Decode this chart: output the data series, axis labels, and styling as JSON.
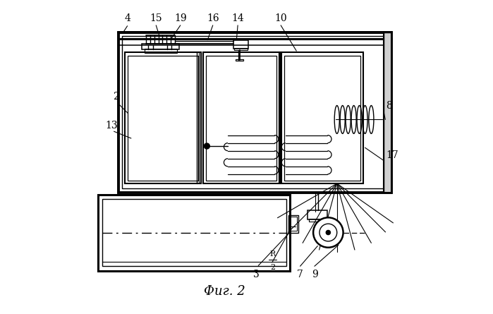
{
  "title": "Фиг. 2",
  "background_color": "#ffffff",
  "line_color": "#000000",
  "fig_width": 6.99,
  "fig_height": 4.45
}
